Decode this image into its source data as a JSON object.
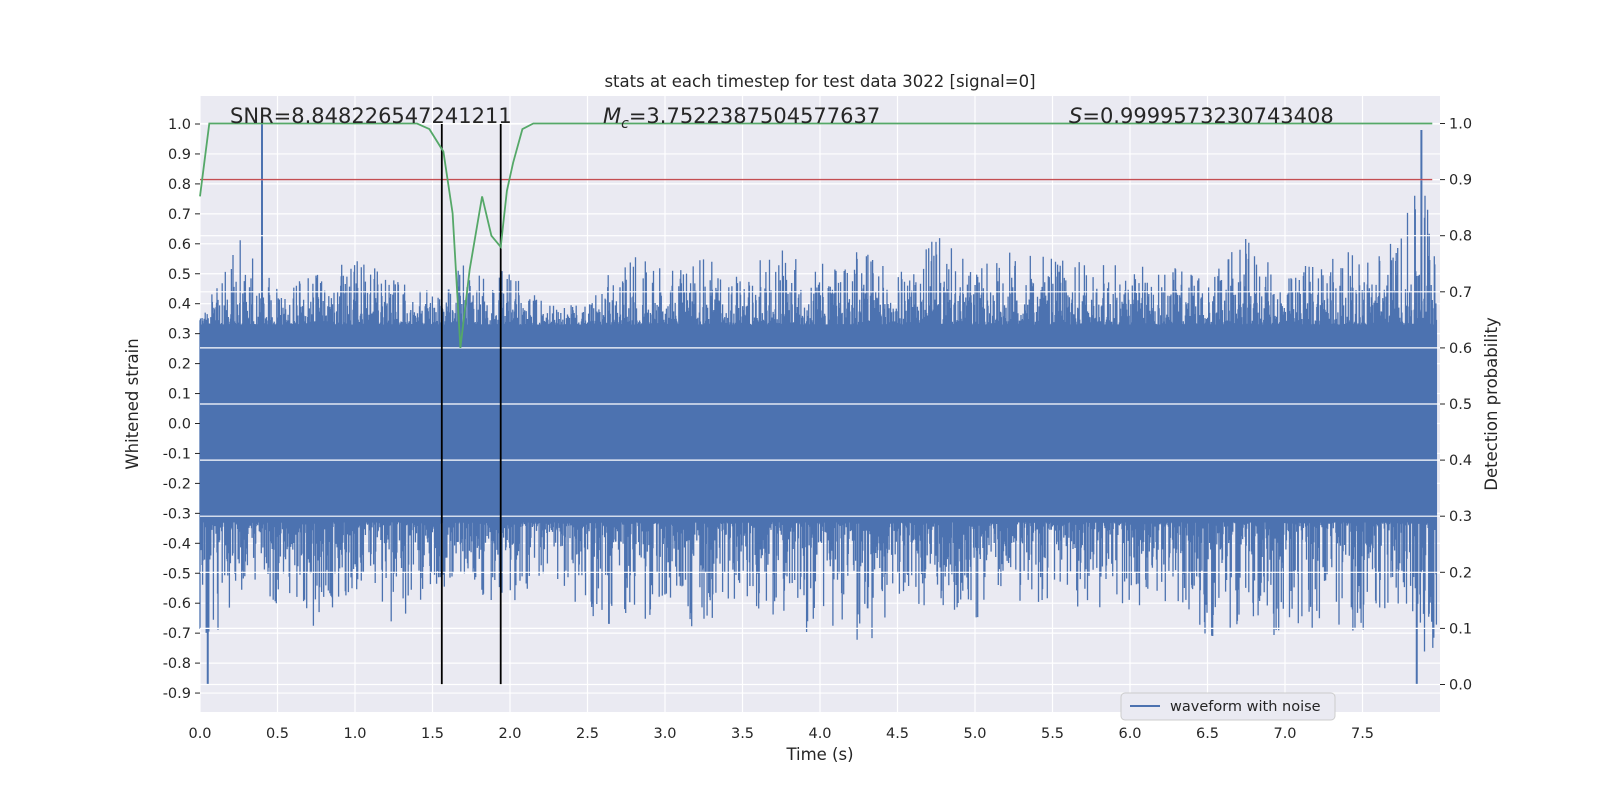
{
  "chart_data": {
    "type": "line",
    "title": "stats at each timestep for test data 3022 [signal=0]",
    "xlabel": "Time (s)",
    "ylabel": "Whitened strain",
    "y2label": "Detection probability",
    "xlim": [
      0.0,
      8.0
    ],
    "ylim": [
      -0.95,
      1.08
    ],
    "y2lim": [
      -0.05,
      1.05
    ],
    "xticks": [
      "0.0",
      "0.5",
      "1.0",
      "1.5",
      "2.0",
      "2.5",
      "3.0",
      "3.5",
      "4.0",
      "4.5",
      "5.0",
      "5.5",
      "6.0",
      "6.5",
      "7.0",
      "7.5"
    ],
    "xtick_values": [
      0.0,
      0.5,
      1.0,
      1.5,
      2.0,
      2.5,
      3.0,
      3.5,
      4.0,
      4.5,
      5.0,
      5.5,
      6.0,
      6.5,
      7.0,
      7.5
    ],
    "yticks": [
      "1.0",
      "0.9",
      "0.8",
      "0.7",
      "0.6",
      "0.5",
      "0.4",
      "0.3",
      "0.2",
      "0.1",
      "0.0",
      "-0.1",
      "-0.2",
      "-0.3",
      "-0.4",
      "-0.5",
      "-0.6",
      "-0.7",
      "-0.8",
      "-0.9"
    ],
    "ytick_values": [
      1.0,
      0.9,
      0.8,
      0.7,
      0.6,
      0.5,
      0.4,
      0.3,
      0.2,
      0.1,
      0.0,
      -0.1,
      -0.2,
      -0.3,
      -0.4,
      -0.5,
      -0.6,
      -0.7,
      -0.8,
      -0.9
    ],
    "y2ticks": [
      "1.0",
      "0.9",
      "0.8",
      "0.7",
      "0.6",
      "0.5",
      "0.4",
      "0.3",
      "0.2",
      "0.1",
      "0.0"
    ],
    "y2tick_values": [
      1.0,
      0.9,
      0.8,
      0.7,
      0.6,
      0.5,
      0.4,
      0.3,
      0.2,
      0.1,
      0.0
    ],
    "series": [
      {
        "name": "waveform with noise",
        "color": "#4c72b0",
        "axis": "left",
        "description": "dense noisy strain time series, envelope approx",
        "band_core": [
          -0.33,
          0.33
        ],
        "envelope_max": [
          0.35,
          0.62,
          0.45,
          0.5,
          0.56,
          0.48,
          0.45,
          0.55,
          0.5,
          0.4,
          0.4,
          0.58,
          0.52,
          0.55,
          0.52,
          0.58,
          0.53,
          0.6,
          0.5,
          0.63,
          0.52,
          0.58,
          0.55,
          0.55,
          0.52,
          0.54,
          0.5,
          0.62,
          0.48,
          0.6,
          0.56,
          0.65,
          0.98
        ],
        "envelope_min": [
          -0.87,
          -0.55,
          -0.62,
          -0.69,
          -0.55,
          -0.7,
          -0.55,
          -0.55,
          -0.63,
          -0.48,
          -0.66,
          -0.68,
          -0.63,
          -0.7,
          -0.57,
          -0.7,
          -0.7,
          -0.78,
          -0.6,
          -0.62,
          -0.65,
          -0.6,
          -0.6,
          -0.62,
          -0.65,
          -0.6,
          -0.72,
          -0.66,
          -0.73,
          -0.7,
          -0.7,
          -0.6,
          -0.87
        ],
        "notable_peaks": [
          {
            "x": 0.4,
            "y": 1.0
          },
          {
            "x": 7.88,
            "y": 0.98
          },
          {
            "x": 0.05,
            "y": -0.87
          },
          {
            "x": 7.85,
            "y": -0.87
          }
        ]
      },
      {
        "name": "detection probability",
        "color": "#55a868",
        "axis": "right",
        "x": [
          0.0,
          0.06,
          0.2,
          0.5,
          1.0,
          1.4,
          1.48,
          1.57,
          1.63,
          1.68,
          1.74,
          1.82,
          1.88,
          1.94,
          1.98,
          2.02,
          2.08,
          2.15,
          2.5,
          3.0,
          4.0,
          5.0,
          6.0,
          7.0,
          7.95
        ],
        "y": [
          0.87,
          1.0,
          1.0,
          1.0,
          1.0,
          1.0,
          0.99,
          0.95,
          0.84,
          0.6,
          0.74,
          0.87,
          0.8,
          0.78,
          0.88,
          0.93,
          0.99,
          1.0,
          1.0,
          1.0,
          1.0,
          1.0,
          1.0,
          1.0,
          1.0
        ]
      }
    ],
    "hlines": [
      {
        "axis": "right",
        "y": 0.9,
        "color": "#c44e52"
      }
    ],
    "vlines": [
      {
        "x": 1.56,
        "ymin": -0.87,
        "ymax": 1.0,
        "color": "#000000"
      },
      {
        "x": 1.94,
        "ymin": -0.87,
        "ymax": 1.0,
        "color": "#000000"
      }
    ],
    "annotations": [
      {
        "text": "SNR=8.848226547241211",
        "x": 0.2,
        "y": 1.0
      },
      {
        "text_main": "M",
        "text_sub": "c",
        "text_rest": "=3.7522387504577637",
        "x": 2.6,
        "y": 1.0
      },
      {
        "text_main": "S",
        "text_rest": "=0.9999573230743408",
        "x": 5.6,
        "y": 1.0
      }
    ],
    "legend": {
      "entries": [
        "waveform with noise"
      ],
      "placement": "lower-right"
    }
  }
}
